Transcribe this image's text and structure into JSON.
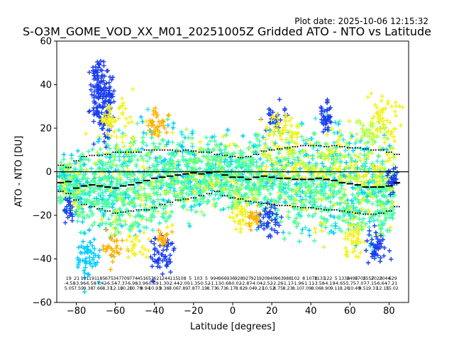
{
  "chart_data": {
    "type": "scatter",
    "plot_date": "Plot date: 2025-10-06 12:15:32",
    "title": "S-O3M_GOME_VOD_XX_M01_20251005Z Gridded ATO - NTO vs Latitude",
    "xlabel": "Latitude [degrees]",
    "ylabel": "ATO - NTO [DU]",
    "xlim": [
      -90,
      90
    ],
    "ylim": [
      -60,
      60
    ],
    "xticks": [
      -80,
      -60,
      -40,
      -20,
      0,
      20,
      40,
      60,
      80
    ],
    "yticks": [
      -60,
      -40,
      -20,
      0,
      20,
      40,
      60
    ],
    "xtick_labels": [
      "−80",
      "−60",
      "−40",
      "−20",
      "0",
      "20",
      "40",
      "60",
      "80"
    ],
    "ytick_labels": [
      "−60",
      "−40",
      "−20",
      "0",
      "20",
      "40",
      "60"
    ],
    "zero_line": 0,
    "colors": {
      "dark_blue": "#1a3cf0",
      "cyan": "#00ccff",
      "light_cyan": "#2cf2d8",
      "green": "#4dff9a",
      "lime": "#b8ff4a",
      "yellow": "#f2f21a",
      "orange": "#ffb000",
      "black": "#000000"
    },
    "bins": {
      "lat": [
        -88,
        -84,
        -80,
        -76,
        -72,
        -68,
        -64,
        -60,
        -56,
        -52,
        -48,
        -44,
        -40,
        -36,
        -32,
        -28,
        -24,
        -20,
        -16,
        -12,
        -8,
        -4,
        0,
        4,
        8,
        12,
        16,
        20,
        24,
        28,
        32,
        36,
        40,
        44,
        48,
        52,
        56,
        60,
        64,
        68,
        72,
        76,
        80,
        84
      ],
      "mean": [
        -5,
        -4.5,
        -7.5,
        -6.5,
        -6,
        -6.5,
        -7,
        -7.5,
        -6.5,
        -6,
        -5,
        -4,
        -3,
        -2.5,
        -2,
        -1.5,
        -1,
        -0.5,
        -1,
        -0.5,
        0,
        -1.5,
        -2.5,
        -2.5,
        -3.5,
        -2.5,
        -2,
        -2.5,
        -3,
        -3,
        -3.5,
        -3.5,
        -3.5,
        -3,
        -3.5,
        -4,
        -5,
        -5.5,
        -6,
        -7,
        -7,
        -7,
        -6.5,
        -5
      ],
      "plus_sigma": [
        3,
        2,
        5,
        7,
        7.5,
        7.5,
        8,
        9,
        9,
        9,
        9,
        10,
        10,
        10,
        10,
        9.5,
        10,
        9.5,
        9,
        9,
        8,
        7.5,
        7,
        6.5,
        7,
        8,
        9.5,
        10,
        10.5,
        11,
        11.5,
        12,
        12,
        12,
        11.5,
        12,
        11.5,
        11,
        11,
        10.5,
        10,
        10,
        9,
        8
      ],
      "minus_sigma": [
        -9,
        -10,
        -13,
        -15,
        -16,
        -17,
        -18,
        -19,
        -18.5,
        -18,
        -17.5,
        -17.5,
        -16.5,
        -15,
        -14,
        -13,
        -12.5,
        -12,
        -11,
        -10,
        -9,
        -11,
        -12,
        -12.5,
        -13.5,
        -14,
        -14.5,
        -15,
        -15.5,
        -15.5,
        -16,
        -16.5,
        -16.5,
        -17,
        -17.5,
        -17.5,
        -18,
        -18.5,
        -19,
        -19.5,
        -19.5,
        -19,
        -18,
        -16
      ]
    },
    "bin_stats": {
      "counts": [
        "19",
        "21",
        "101",
        "191",
        "185",
        "675",
        "347",
        "709",
        "774",
        "451",
        "653",
        "621",
        "244",
        "115",
        "108",
        "5",
        "103",
        "5",
        "994",
        "966",
        "936",
        "928",
        "927",
        "921",
        "920",
        "940",
        "963",
        "988",
        "102",
        "8",
        "1078",
        "1131",
        "122",
        "5",
        "1338",
        "1490",
        "1705",
        "2557",
        "2023",
        "2044",
        "629"
      ],
      "means": [
        "-4.58",
        "-3.96",
        "-6.58",
        "-7.42",
        "-6.54",
        "-7.37",
        "-6.98",
        "-3.96",
        "-0.59",
        "-1.30",
        "-2.44",
        "-2.00",
        "-1.35",
        "-0.52",
        "-1.13",
        "-0.68",
        "-0.02",
        "-2.87",
        "-4.04",
        "-2.52",
        "-2.26",
        "-1.17",
        "-1.96",
        "-1.11",
        "-3.58",
        "-4.19",
        "-4.65",
        "-5.75",
        "-7.07",
        "-7.15",
        "-6.64",
        "-7.21"
      ],
      "sigmas": [
        "5.05",
        "7.59",
        "9.38",
        "7.66",
        "8.37",
        "12.10",
        "10.20",
        "10.79",
        "9.94",
        "10.93",
        "9.36",
        "8.06",
        "7.89",
        "7.87",
        "7.19",
        "8.73",
        "6.73",
        "6.17",
        "8.82",
        "9.04",
        "9.21",
        "10.52",
        "8.75",
        "8.23",
        "8.10",
        "7.09",
        "8.06",
        "8.90",
        "9.11",
        "8.26",
        "10.49",
        "9.51",
        "9.31",
        "12.15",
        "15.02"
      ]
    }
  }
}
